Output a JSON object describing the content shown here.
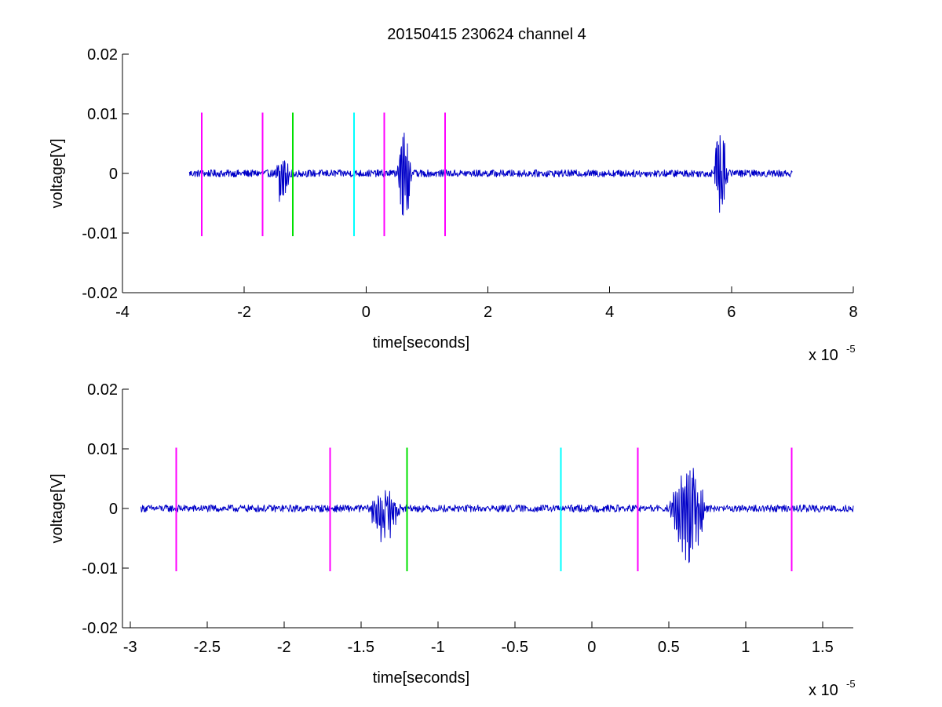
{
  "figure_title": "20150415 230624 channel 4",
  "colors": {
    "signal": "#0000c8",
    "magenta": "#ff00ff",
    "green": "#00e000",
    "cyan": "#00ffff"
  },
  "chart_data": [
    {
      "type": "line",
      "title": "20150415 230624 channel 4",
      "xlabel": "time[seconds]",
      "ylabel": "voltage[V]",
      "x_multiplier_label": "x 10",
      "x_multiplier_exponent": "-5",
      "xlim": [
        -4,
        8
      ],
      "ylim": [
        -0.02,
        0.02
      ],
      "xticks": [
        -4,
        -2,
        0,
        2,
        4,
        6,
        8
      ],
      "xtick_labels": [
        "-4",
        "-2",
        "0",
        "2",
        "4",
        "6",
        "8"
      ],
      "yticks": [
        0.02,
        0.01,
        0,
        -0.01,
        -0.02
      ],
      "ytick_labels": [
        "0.02",
        "0.01",
        "0",
        "-0.01",
        "-0.02"
      ],
      "grid": false,
      "series": [
        {
          "color": "#0000c8",
          "x_range": [
            -2.9,
            7.0
          ],
          "baseline": 0,
          "bursts": [
            {
              "x": [
                -1.5,
                -1.15
              ],
              "amp_pos": 0.003,
              "amp_neg": -0.006
            },
            {
              "x": [
                0.5,
                0.85
              ],
              "amp_pos": 0.007,
              "amp_neg": -0.0095
            },
            {
              "x": [
                5.7,
                6.05
              ],
              "amp_pos": 0.009,
              "amp_neg": -0.007
            }
          ]
        }
      ],
      "markers": [
        {
          "x": -2.7,
          "color": "#ff00ff",
          "ymin": -0.0105,
          "ymax": 0.0102
        },
        {
          "x": -1.7,
          "color": "#ff00ff",
          "ymin": -0.0105,
          "ymax": 0.0102
        },
        {
          "x": -1.2,
          "color": "#00e000",
          "ymin": -0.0105,
          "ymax": 0.0102
        },
        {
          "x": -0.2,
          "color": "#00ffff",
          "ymin": -0.0105,
          "ymax": 0.0102
        },
        {
          "x": 0.3,
          "color": "#ff00ff",
          "ymin": -0.0105,
          "ymax": 0.0102
        },
        {
          "x": 1.3,
          "color": "#ff00ff",
          "ymin": -0.0105,
          "ymax": 0.0102
        }
      ]
    },
    {
      "type": "line",
      "title": "",
      "xlabel": "time[seconds]",
      "ylabel": "voltage[V]",
      "x_multiplier_label": "x 10",
      "x_multiplier_exponent": "-5",
      "xlim": [
        -3.05,
        1.7
      ],
      "ylim": [
        -0.02,
        0.02
      ],
      "xticks": [
        -3,
        -2.5,
        -2,
        -1.5,
        -1,
        -0.5,
        0,
        0.5,
        1,
        1.5
      ],
      "xtick_labels": [
        "-3",
        "-2.5",
        "-2",
        "-1.5",
        "-1",
        "-0.5",
        "0",
        "0.5",
        "1",
        "1.5"
      ],
      "yticks": [
        0.02,
        0.01,
        0,
        -0.01,
        -0.02
      ],
      "ytick_labels": [
        "0.02",
        "0.01",
        "0",
        "-0.01",
        "-0.02"
      ],
      "grid": false,
      "series": [
        {
          "color": "#0000c8",
          "x_range": [
            -2.93,
            1.7
          ],
          "baseline": 0,
          "bursts": [
            {
              "x": [
                -1.45,
                -1.15
              ],
              "amp_pos": 0.003,
              "amp_neg": -0.006
            },
            {
              "x": [
                0.5,
                0.85
              ],
              "amp_pos": 0.008,
              "amp_neg": -0.0095
            }
          ]
        }
      ],
      "markers": [
        {
          "x": -2.7,
          "color": "#ff00ff",
          "ymin": -0.0105,
          "ymax": 0.0102
        },
        {
          "x": -1.7,
          "color": "#ff00ff",
          "ymin": -0.0105,
          "ymax": 0.0102
        },
        {
          "x": -1.2,
          "color": "#00e000",
          "ymin": -0.0105,
          "ymax": 0.0102
        },
        {
          "x": -0.2,
          "color": "#00ffff",
          "ymin": -0.0105,
          "ymax": 0.0102
        },
        {
          "x": 0.3,
          "color": "#ff00ff",
          "ymin": -0.0105,
          "ymax": 0.0102
        },
        {
          "x": 1.3,
          "color": "#ff00ff",
          "ymin": -0.0105,
          "ymax": 0.0102
        }
      ]
    }
  ]
}
